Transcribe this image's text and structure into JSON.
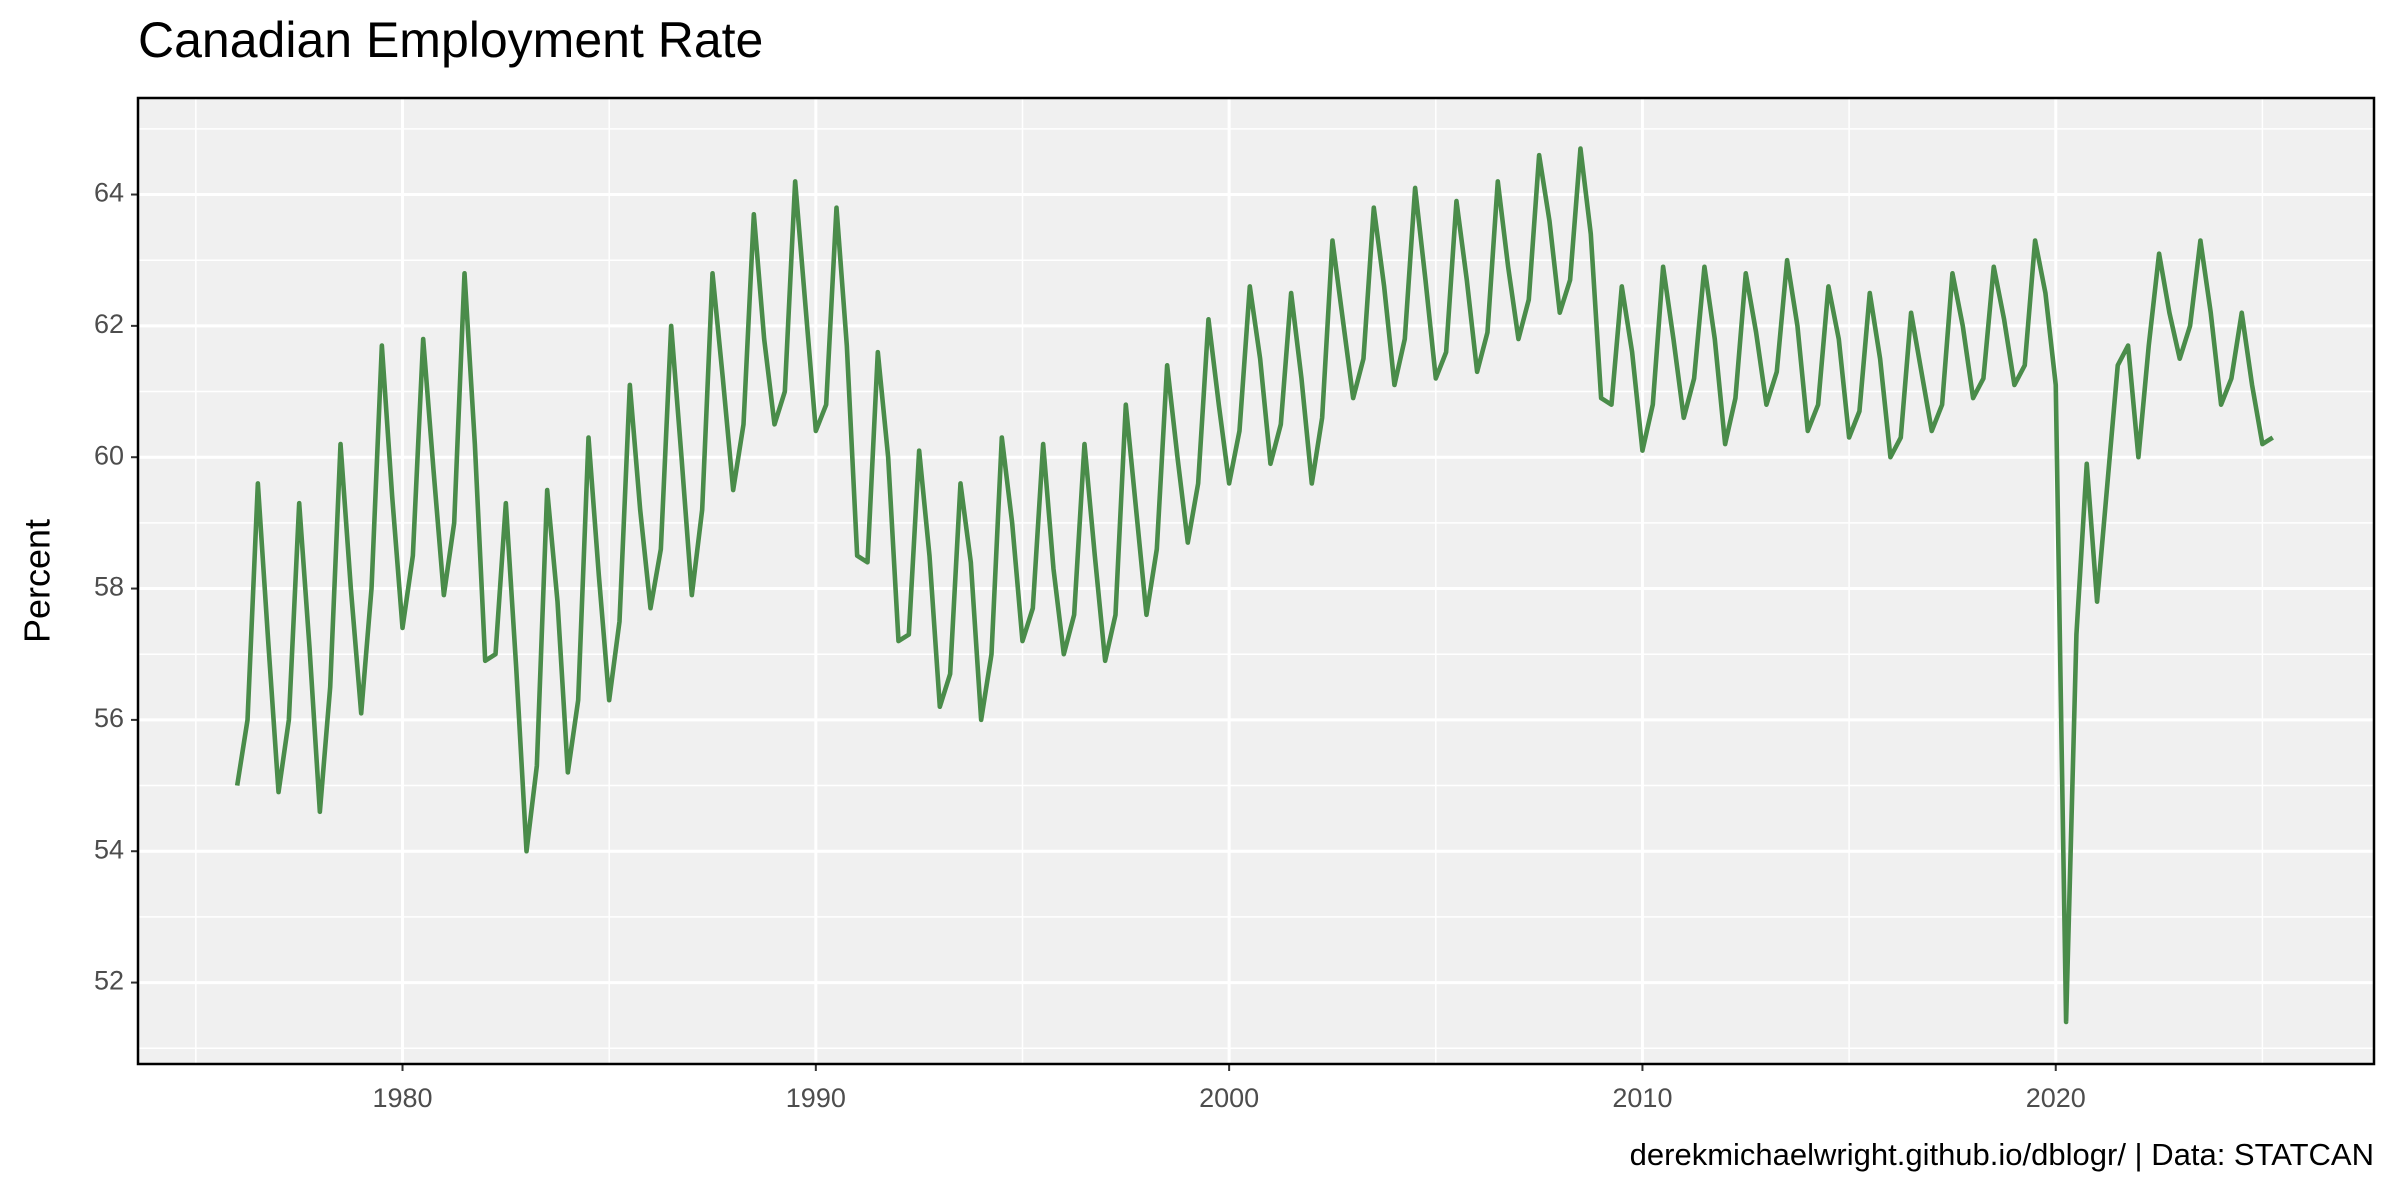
{
  "chart_data": {
    "type": "line",
    "title": "Canadian Employment Rate",
    "y_label": "Percent",
    "caption": "derekmichaelwright.github.io/dblogr/ | Data: STATCAN",
    "x": [
      1976,
      1976.25,
      1976.5,
      1976.75,
      1977,
      1977.25,
      1977.5,
      1977.75,
      1978,
      1978.25,
      1978.5,
      1978.75,
      1979,
      1979.25,
      1979.5,
      1979.75,
      1980,
      1980.25,
      1980.5,
      1980.75,
      1981,
      1981.25,
      1981.5,
      1981.75,
      1982,
      1982.25,
      1982.5,
      1982.75,
      1983,
      1983.25,
      1983.5,
      1983.75,
      1984,
      1984.25,
      1984.5,
      1984.75,
      1985,
      1985.25,
      1985.5,
      1985.75,
      1986,
      1986.25,
      1986.5,
      1986.75,
      1987,
      1987.25,
      1987.5,
      1987.75,
      1988,
      1988.25,
      1988.5,
      1988.75,
      1989,
      1989.25,
      1989.5,
      1989.75,
      1990,
      1990.25,
      1990.5,
      1990.75,
      1991,
      1991.25,
      1991.5,
      1991.75,
      1992,
      1992.25,
      1992.5,
      1992.75,
      1993,
      1993.25,
      1993.5,
      1993.75,
      1994,
      1994.25,
      1994.5,
      1994.75,
      1995,
      1995.25,
      1995.5,
      1995.75,
      1996,
      1996.25,
      1996.5,
      1996.75,
      1997,
      1997.25,
      1997.5,
      1997.75,
      1998,
      1998.25,
      1998.5,
      1998.75,
      1999,
      1999.25,
      1999.5,
      1999.75,
      2000,
      2000.25,
      2000.5,
      2000.75,
      2001,
      2001.25,
      2001.5,
      2001.75,
      2002,
      2002.25,
      2002.5,
      2002.75,
      2003,
      2003.25,
      2003.5,
      2003.75,
      2004,
      2004.25,
      2004.5,
      2004.75,
      2005,
      2005.25,
      2005.5,
      2005.75,
      2006,
      2006.25,
      2006.5,
      2006.75,
      2007,
      2007.25,
      2007.5,
      2007.75,
      2008,
      2008.25,
      2008.5,
      2008.75,
      2009,
      2009.25,
      2009.5,
      2009.75,
      2010,
      2010.25,
      2010.5,
      2010.75,
      2011,
      2011.25,
      2011.5,
      2011.75,
      2012,
      2012.25,
      2012.5,
      2012.75,
      2013,
      2013.25,
      2013.5,
      2013.75,
      2014,
      2014.25,
      2014.5,
      2014.75,
      2015,
      2015.25,
      2015.5,
      2015.75,
      2016,
      2016.25,
      2016.5,
      2016.75,
      2017,
      2017.25,
      2017.5,
      2017.75,
      2018,
      2018.25,
      2018.5,
      2018.75,
      2019,
      2019.25,
      2019.5,
      2019.75,
      2020,
      2020.25,
      2020.5,
      2020.75,
      2021,
      2021.25,
      2021.5,
      2021.75,
      2022,
      2022.25,
      2022.5,
      2022.75,
      2023,
      2023.25,
      2023.5,
      2023.75,
      2024,
      2024.25,
      2024.5,
      2024.75,
      2025,
      2025.25
    ],
    "series": [
      {
        "color": "#4a8c4a",
        "values": [
          55.0,
          56.0,
          59.6,
          57.2,
          54.9,
          56.0,
          59.3,
          57.1,
          54.6,
          56.5,
          60.2,
          58.0,
          56.1,
          58.0,
          61.7,
          59.4,
          57.4,
          58.5,
          61.8,
          59.8,
          57.9,
          59.0,
          62.8,
          60.2,
          56.9,
          57.0,
          59.3,
          56.8,
          54.0,
          55.3,
          59.5,
          57.8,
          55.2,
          56.3,
          60.3,
          58.2,
          56.3,
          57.5,
          61.1,
          59.2,
          57.7,
          58.6,
          62.0,
          60.0,
          57.9,
          59.2,
          62.8,
          61.2,
          59.5,
          60.5,
          63.7,
          61.8,
          60.5,
          61.0,
          64.2,
          62.3,
          60.4,
          60.8,
          63.8,
          61.7,
          58.5,
          58.4,
          61.6,
          60.0,
          57.2,
          57.3,
          60.1,
          58.5,
          56.2,
          56.7,
          59.6,
          58.4,
          56.0,
          57.0,
          60.3,
          59.0,
          57.2,
          57.7,
          60.2,
          58.3,
          57.0,
          57.6,
          60.2,
          58.5,
          56.9,
          57.6,
          60.8,
          59.2,
          57.6,
          58.6,
          61.4,
          60.0,
          58.7,
          59.6,
          62.1,
          60.8,
          59.6,
          60.4,
          62.6,
          61.5,
          59.9,
          60.5,
          62.5,
          61.2,
          59.6,
          60.6,
          63.3,
          62.1,
          60.9,
          61.5,
          63.8,
          62.6,
          61.1,
          61.8,
          64.1,
          62.7,
          61.2,
          61.6,
          63.9,
          62.7,
          61.3,
          61.9,
          64.2,
          62.9,
          61.8,
          62.4,
          64.6,
          63.6,
          62.2,
          62.7,
          64.7,
          63.4,
          60.9,
          60.8,
          62.6,
          61.6,
          60.1,
          60.8,
          62.9,
          61.8,
          60.6,
          61.2,
          62.9,
          61.8,
          60.2,
          60.9,
          62.8,
          61.9,
          60.8,
          61.3,
          63.0,
          62.0,
          60.4,
          60.8,
          62.6,
          61.8,
          60.3,
          60.7,
          62.5,
          61.5,
          60.0,
          60.3,
          62.2,
          61.3,
          60.4,
          60.8,
          62.8,
          62.0,
          60.9,
          61.2,
          62.9,
          62.1,
          61.1,
          61.4,
          63.3,
          62.5,
          61.1,
          51.4,
          57.3,
          59.9,
          57.8,
          59.6,
          61.4,
          61.7,
          60.0,
          61.7,
          63.1,
          62.2,
          61.5,
          62.0,
          63.3,
          62.2,
          60.8,
          61.2,
          62.2,
          61.1,
          60.2,
          60.3
        ]
      }
    ],
    "xlim": [
      1973.6,
      2027.7
    ],
    "ylim": [
      50.76,
      65.47
    ],
    "xticks": [
      1980,
      1990,
      2000,
      2010,
      2020
    ],
    "yticks": [
      52,
      54,
      56,
      58,
      60,
      62,
      64
    ],
    "minor_xticks": [
      1975,
      1985,
      1995,
      2005,
      2015,
      2025
    ],
    "minor_yticks": [
      51,
      53,
      55,
      57,
      59,
      61,
      63,
      65
    ],
    "grid": true
  }
}
